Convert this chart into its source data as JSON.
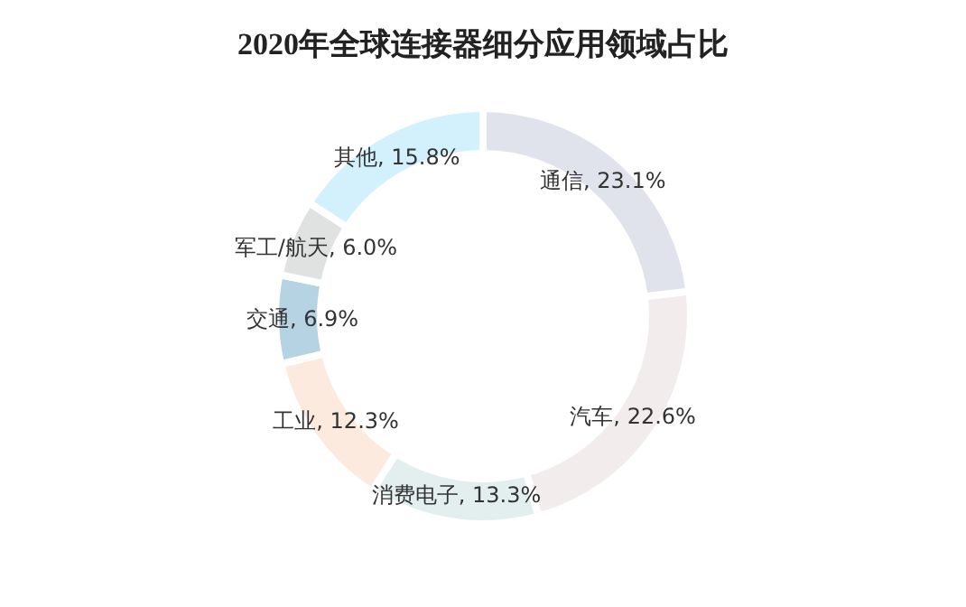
{
  "chart_data": {
    "type": "donut",
    "title": "2020年全球连接器细分应用领域占比",
    "categories": [
      "通信",
      "汽车",
      "消费电子",
      "工业",
      "交通",
      "军工/航天",
      "其他"
    ],
    "values": [
      23.1,
      22.6,
      13.3,
      12.3,
      6.9,
      6.0,
      15.8
    ],
    "colors": [
      "#e0e3ec",
      "#f3ecec",
      "#e2efee",
      "#fdeadf",
      "#b6d3e4",
      "#e0e1e1",
      "#d2f1fd"
    ],
    "value_labels": [
      "23.1%",
      "22.6%",
      "13.3%",
      "12.3%",
      "6.9%",
      "6.0%",
      "15.8%"
    ],
    "legend": false
  }
}
